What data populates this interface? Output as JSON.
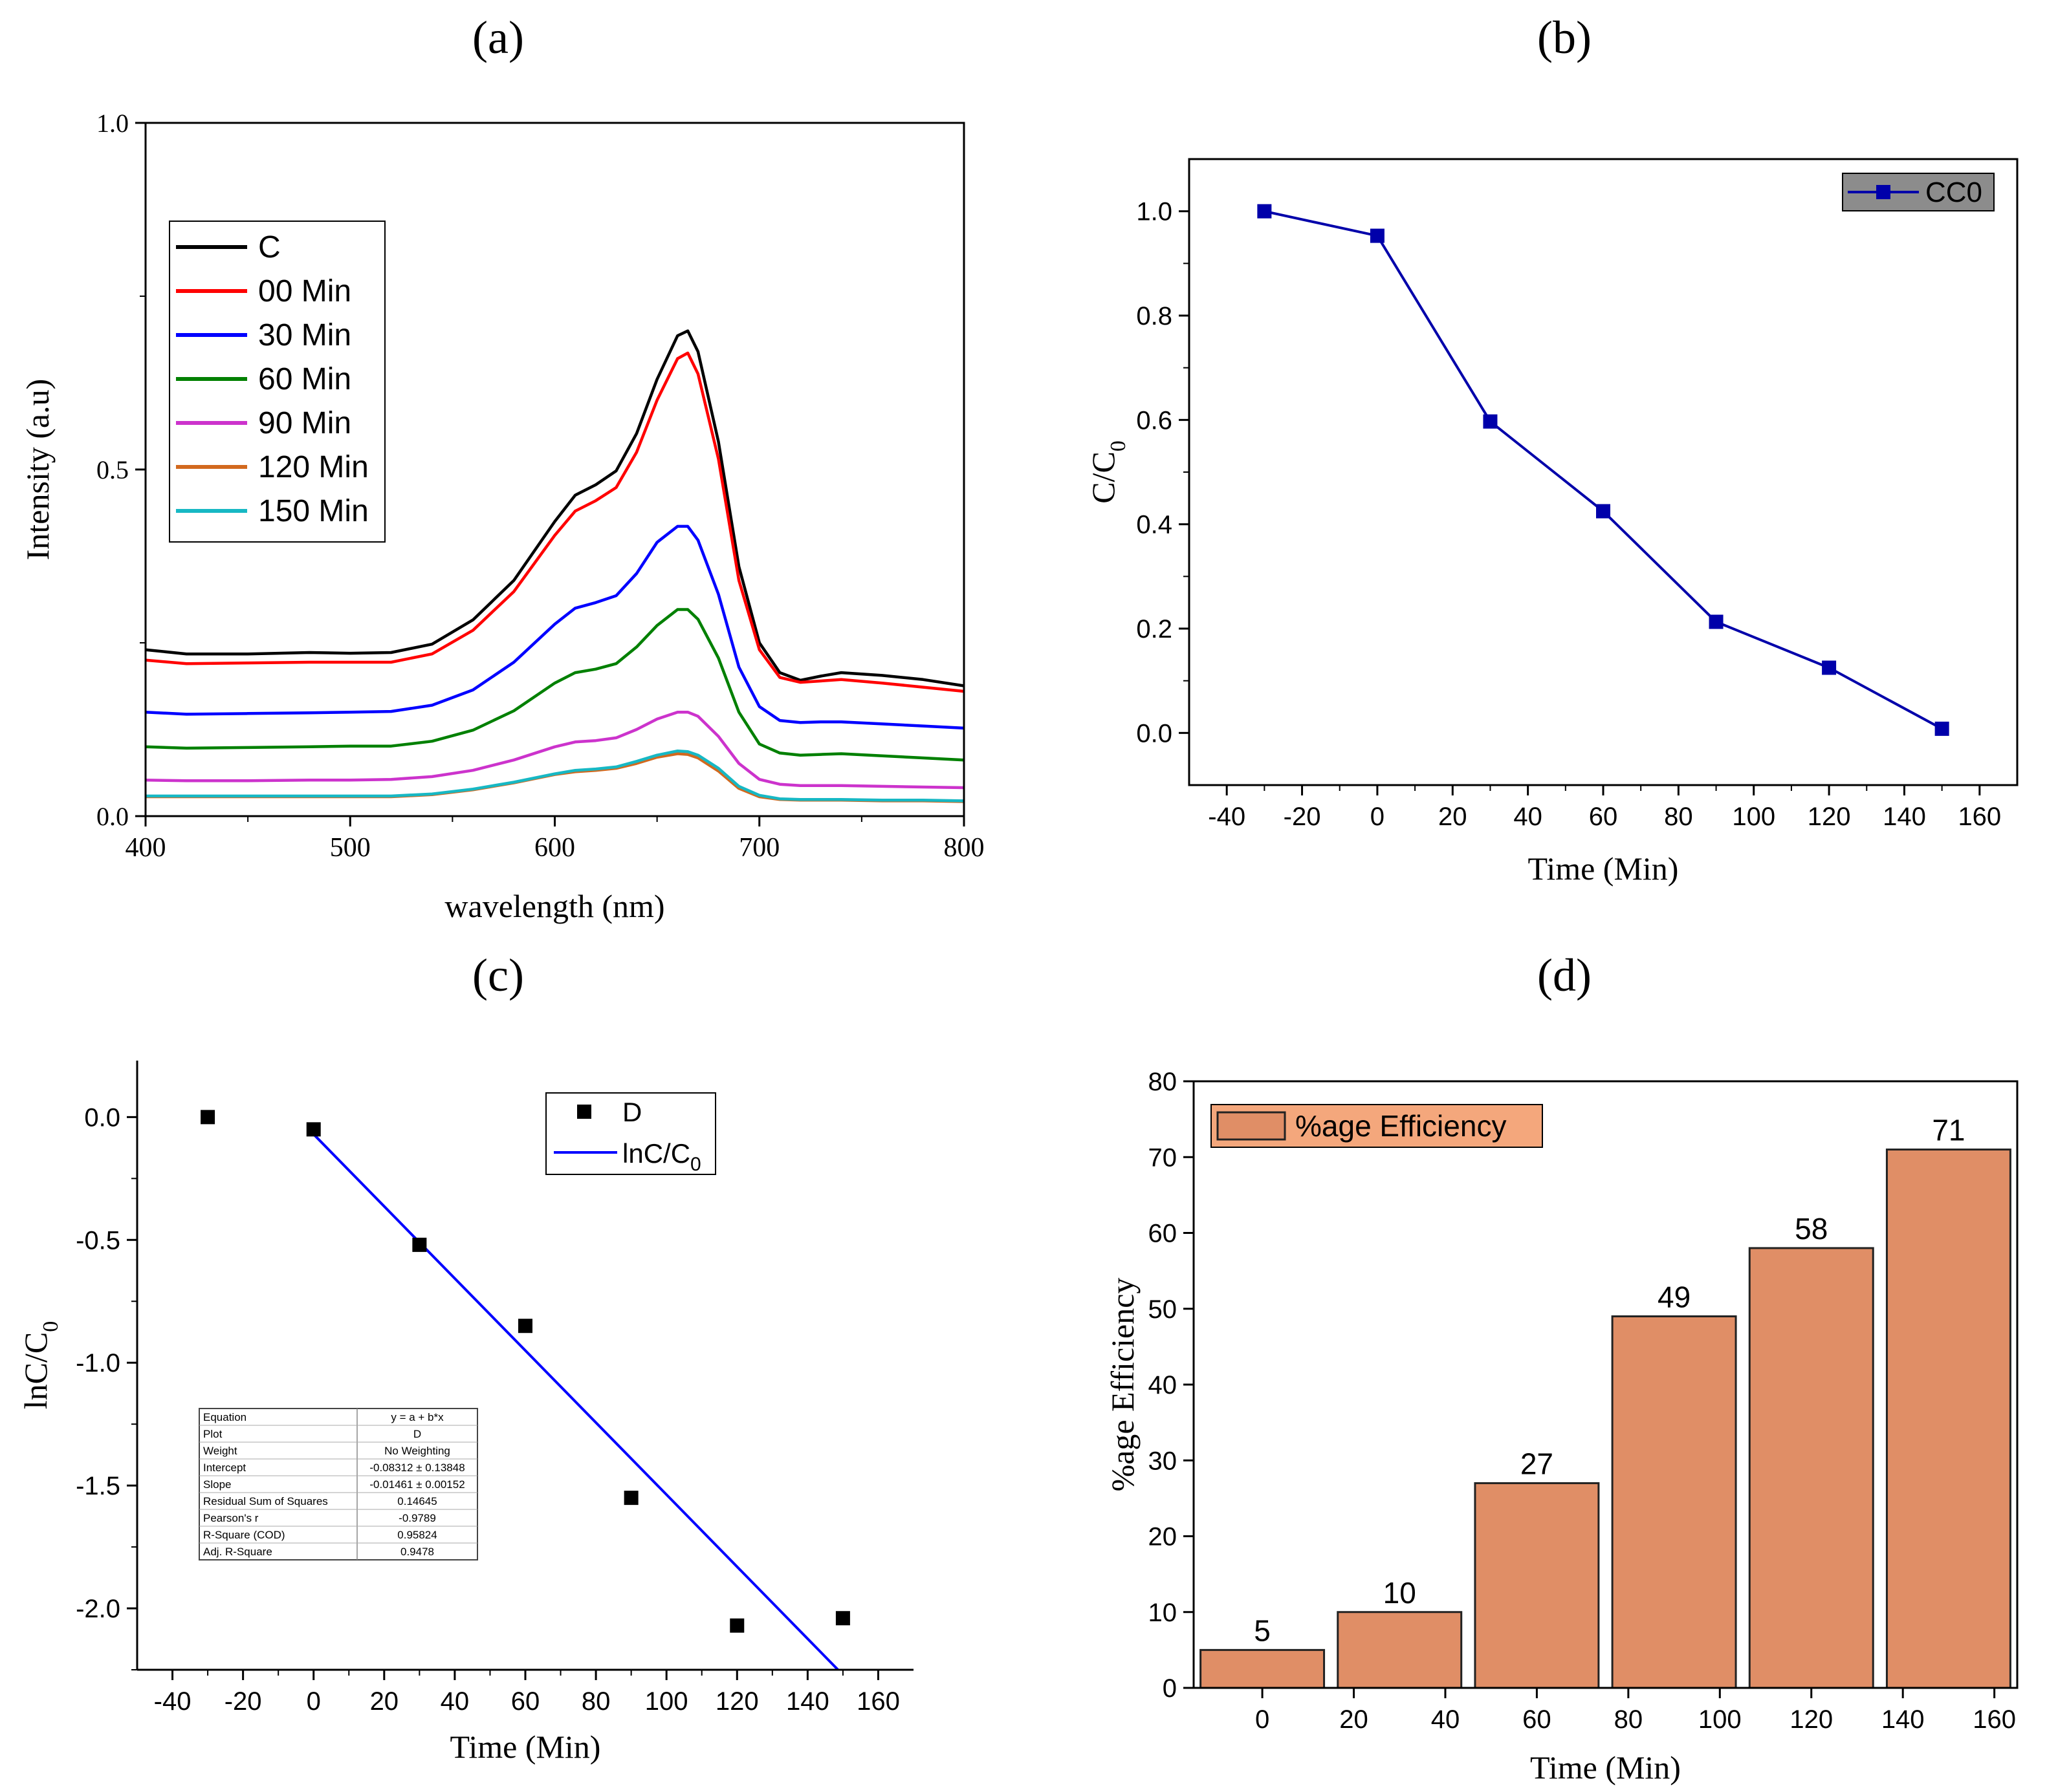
{
  "panels": {
    "a": {
      "label": "(a)",
      "chart_data": {
        "type": "line",
        "xlabel": "wavelength (nm)",
        "ylabel": "Intensity (a.u)",
        "xlim": [
          400,
          800
        ],
        "ylim": [
          0.0,
          1.0
        ],
        "xticks": [
          400,
          500,
          600,
          700,
          800
        ],
        "yticks": [
          0.0,
          0.5,
          1.0
        ],
        "ytick_labels": [
          "0.0",
          "0.5",
          "1.0"
        ],
        "legend": "top-left",
        "x": [
          400,
          420,
          450,
          480,
          500,
          520,
          540,
          560,
          580,
          600,
          610,
          620,
          630,
          640,
          650,
          660,
          665,
          670,
          680,
          690,
          700,
          710,
          720,
          730,
          740,
          760,
          780,
          800
        ],
        "series": [
          {
            "name": "C",
            "color": "#000000",
            "values": [
              0.24,
              0.234,
              0.234,
              0.236,
              0.235,
              0.236,
              0.248,
              0.283,
              0.34,
              0.425,
              0.463,
              0.478,
              0.498,
              0.552,
              0.63,
              0.693,
              0.7,
              0.67,
              0.54,
              0.36,
              0.25,
              0.207,
              0.196,
              0.202,
              0.207,
              0.203,
              0.197,
              0.188
            ]
          },
          {
            "name": "00 Min",
            "color": "#ff0000",
            "values": [
              0.225,
              0.22,
              0.221,
              0.222,
              0.222,
              0.222,
              0.234,
              0.268,
              0.324,
              0.405,
              0.44,
              0.455,
              0.474,
              0.525,
              0.6,
              0.66,
              0.668,
              0.638,
              0.515,
              0.34,
              0.24,
              0.2,
              0.193,
              0.195,
              0.197,
              0.192,
              0.186,
              0.18
            ]
          },
          {
            "name": "30 Min",
            "color": "#0000ff",
            "values": [
              0.15,
              0.147,
              0.148,
              0.149,
              0.15,
              0.151,
              0.16,
              0.182,
              0.222,
              0.277,
              0.3,
              0.308,
              0.318,
              0.35,
              0.395,
              0.418,
              0.418,
              0.398,
              0.32,
              0.215,
              0.158,
              0.138,
              0.135,
              0.136,
              0.136,
              0.133,
              0.13,
              0.127
            ]
          },
          {
            "name": "60 Min",
            "color": "#008000",
            "values": [
              0.1,
              0.098,
              0.099,
              0.1,
              0.101,
              0.101,
              0.108,
              0.124,
              0.152,
              0.192,
              0.207,
              0.212,
              0.22,
              0.244,
              0.275,
              0.298,
              0.298,
              0.284,
              0.228,
              0.15,
              0.104,
              0.091,
              0.088,
              0.089,
              0.09,
              0.087,
              0.084,
              0.081
            ]
          },
          {
            "name": "90 Min",
            "color": "#cc33cc",
            "values": [
              0.052,
              0.051,
              0.051,
              0.052,
              0.052,
              0.053,
              0.057,
              0.066,
              0.081,
              0.1,
              0.107,
              0.109,
              0.113,
              0.125,
              0.14,
              0.15,
              0.15,
              0.144,
              0.115,
              0.076,
              0.053,
              0.046,
              0.044,
              0.044,
              0.044,
              0.043,
              0.042,
              0.041
            ]
          },
          {
            "name": "120 Min",
            "color": "#d2691e",
            "values": [
              0.028,
              0.028,
              0.028,
              0.028,
              0.028,
              0.028,
              0.031,
              0.038,
              0.048,
              0.06,
              0.064,
              0.066,
              0.069,
              0.076,
              0.085,
              0.09,
              0.089,
              0.084,
              0.065,
              0.04,
              0.028,
              0.024,
              0.023,
              0.023,
              0.023,
              0.022,
              0.022,
              0.021
            ]
          },
          {
            "name": "150 Min",
            "color": "#17b8c4",
            "values": [
              0.029,
              0.029,
              0.029,
              0.029,
              0.029,
              0.029,
              0.032,
              0.039,
              0.049,
              0.061,
              0.066,
              0.068,
              0.071,
              0.079,
              0.088,
              0.094,
              0.093,
              0.088,
              0.069,
              0.043,
              0.03,
              0.025,
              0.024,
              0.024,
              0.024,
              0.023,
              0.023,
              0.022
            ]
          }
        ]
      }
    },
    "b": {
      "label": "(b)",
      "chart_data": {
        "type": "line",
        "xlabel": "Time (Min)",
        "ylabel": "C/C",
        "ylabel_sub": "0",
        "xlim": [
          -50,
          170
        ],
        "ylim": [
          -0.1,
          1.1
        ],
        "xticks": [
          -40,
          -20,
          0,
          20,
          40,
          60,
          80,
          100,
          120,
          140,
          160
        ],
        "yticks": [
          0.0,
          0.2,
          0.4,
          0.6,
          0.8,
          1.0
        ],
        "ytick_labels": [
          "0.0",
          "0.2",
          "0.4",
          "0.6",
          "0.8",
          "1.0"
        ],
        "legend": "top-right",
        "series": [
          {
            "name": "CC0",
            "color": "#0000aa",
            "marker": "square",
            "x": [
              -30,
              0,
              30,
              60,
              90,
              120,
              150
            ],
            "values": [
              1.0,
              0.953,
              0.597,
              0.425,
              0.213,
              0.125,
              0.008
            ]
          }
        ]
      }
    },
    "c": {
      "label": "(c)",
      "chart_data": {
        "type": "scatter",
        "xlabel": "Time (Min)",
        "ylabel": "lnC/C",
        "ylabel_sub": "0",
        "xlim": [
          -50,
          170
        ],
        "ylim": [
          -2.25,
          0.23
        ],
        "xticks": [
          -40,
          -20,
          0,
          20,
          40,
          60,
          80,
          100,
          120,
          140,
          160
        ],
        "yticks": [
          0.0,
          -0.5,
          -1.0,
          -1.5,
          -2.0
        ],
        "ytick_labels": [
          "0.0",
          "-0.5",
          "-1.0",
          "-1.5",
          "-2.0"
        ],
        "legend": "top-right",
        "series": [
          {
            "name": "D",
            "color": "#000000",
            "marker": "square",
            "x": [
              -30,
              0,
              30,
              60,
              90,
              120,
              150
            ],
            "values": [
              0.0,
              -0.05,
              -0.52,
              -0.85,
              -1.55,
              -2.07,
              -2.04
            ]
          }
        ],
        "fit": {
          "name": "lnC/C",
          "name_sub": "0",
          "color": "#0000ff",
          "x0": 0,
          "x1": 148.6,
          "y0": -0.07,
          "y1": -2.25
        },
        "fit_table": {
          "rows": [
            [
              "Equation",
              "y = a + b*x"
            ],
            [
              "Plot",
              "D"
            ],
            [
              "Weight",
              "No Weighting"
            ],
            [
              "Intercept",
              "-0.08312 ± 0.13848"
            ],
            [
              "Slope",
              "-0.01461 ± 0.00152"
            ],
            [
              "Residual Sum of Squares",
              "0.14645"
            ],
            [
              "Pearson's r",
              "-0.9789"
            ],
            [
              "R-Square (COD)",
              "0.95824"
            ],
            [
              "Adj. R-Square",
              "0.9478"
            ]
          ]
        }
      }
    },
    "d": {
      "label": "(d)",
      "chart_data": {
        "type": "bar",
        "xlabel": "Time (Min)",
        "ylabel": "%age Efficiency",
        "xlim": [
          -15,
          165
        ],
        "ylim": [
          0,
          80
        ],
        "xticks": [
          0,
          20,
          40,
          60,
          80,
          100,
          120,
          140,
          160
        ],
        "yticks": [
          0,
          10,
          20,
          30,
          40,
          50,
          60,
          70,
          80
        ],
        "legend": "top-left",
        "series": [
          {
            "name": "%age Efficiency",
            "color": "#e08e66",
            "x": [
              0,
              30,
              60,
              90,
              120,
              150
            ],
            "values": [
              5,
              10,
              27,
              49,
              58,
              71
            ],
            "labels": [
              "5",
              "10",
              "27",
              "49",
              "58",
              "71"
            ]
          }
        ]
      }
    }
  }
}
